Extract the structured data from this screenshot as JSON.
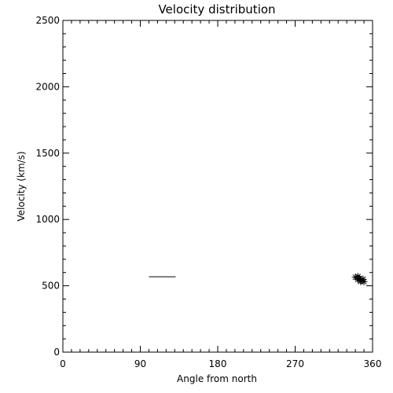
{
  "chart_data": {
    "type": "scatter",
    "title": "Velocity distribution",
    "xlabel": "Angle from north",
    "ylabel": "Velocity (km/s)",
    "xlim": [
      0,
      360
    ],
    "ylim": [
      0,
      2500
    ],
    "xticks": [
      0,
      90,
      180,
      270,
      360
    ],
    "yticks": [
      0,
      500,
      1000,
      1500,
      2000,
      2500
    ],
    "x_minor_step": 10,
    "y_minor_step": 100,
    "grid": false,
    "line_segments": [
      {
        "x": [
          100,
          131
        ],
        "y": [
          568,
          568
        ]
      }
    ],
    "scatter": {
      "marker": "asterisk",
      "points": [
        {
          "x": 340,
          "y": 565
        },
        {
          "x": 343,
          "y": 570
        },
        {
          "x": 345,
          "y": 556
        },
        {
          "x": 343,
          "y": 548
        },
        {
          "x": 347,
          "y": 540
        },
        {
          "x": 349,
          "y": 549
        },
        {
          "x": 346,
          "y": 533
        },
        {
          "x": 350,
          "y": 531
        }
      ]
    }
  }
}
